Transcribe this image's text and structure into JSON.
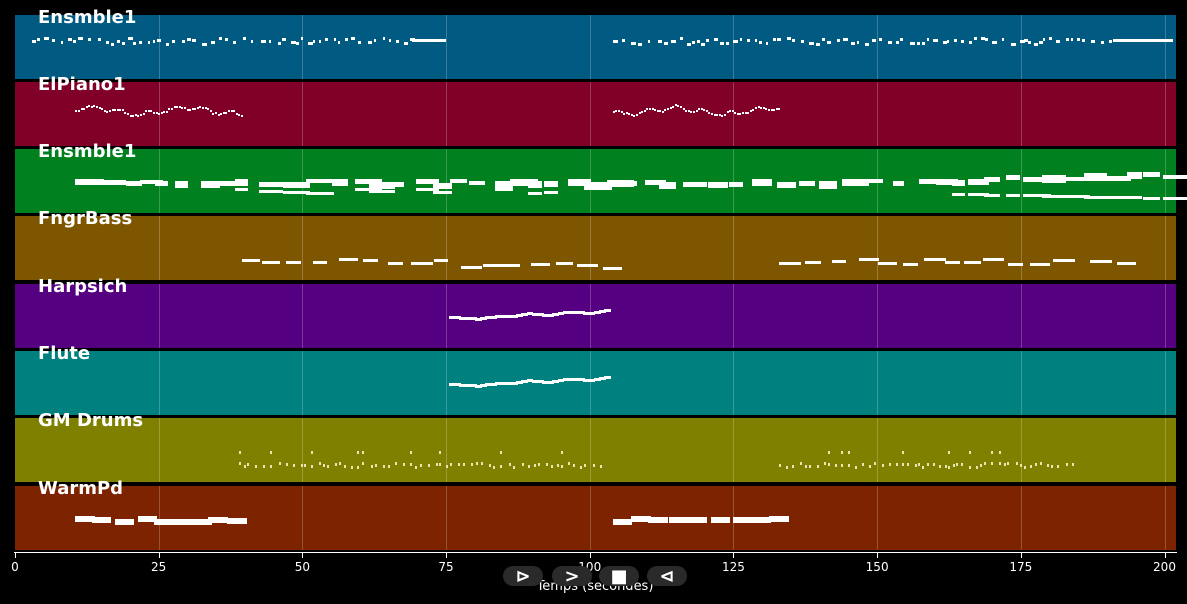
{
  "tracks": [
    {
      "name": "Ensmble1",
      "color": "#005a82",
      "style": "dashes"
    },
    {
      "name": "ElPiano1",
      "color": "#800028",
      "style": "squiggle"
    },
    {
      "name": "Ensmble1",
      "color": "#00801e",
      "style": "blocks"
    },
    {
      "name": "FngrBass",
      "color": "#7e5600",
      "style": "bass"
    },
    {
      "name": "Harpsich",
      "color": "#550080",
      "style": "line"
    },
    {
      "name": "Flute",
      "color": "#00807e",
      "style": "line"
    },
    {
      "name": "GM Drums",
      "color": "#808000",
      "style": "drums"
    },
    {
      "name": "WarmPd",
      "color": "#7e2300",
      "style": "pads"
    }
  ],
  "axis": {
    "title": "Temps (secondes)",
    "min": 0,
    "max": 202,
    "ticks": [
      "0",
      "25",
      "50",
      "75",
      "100",
      "125",
      "150",
      "175",
      "200"
    ]
  },
  "controls": [
    {
      "name": "play-button",
      "glyph": "⊳"
    },
    {
      "name": "forward-button",
      "glyph": ">"
    },
    {
      "name": "stop-button",
      "glyph": "■"
    },
    {
      "name": "rewind-button",
      "glyph": "⊲"
    }
  ]
}
